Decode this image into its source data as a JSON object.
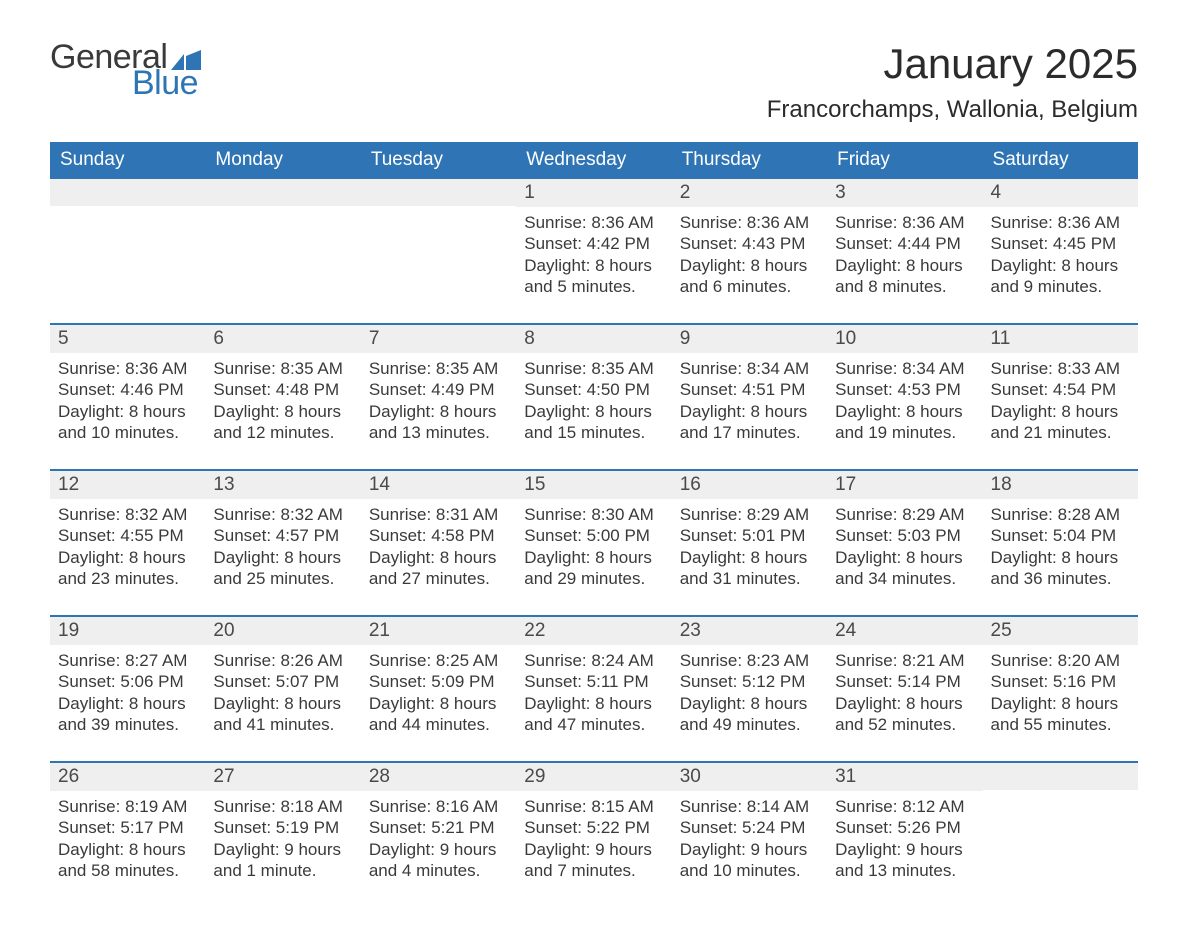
{
  "logo": {
    "general": "General",
    "blue": "Blue"
  },
  "title": "January 2025",
  "location": "Francorchamps, Wallonia, Belgium",
  "colors": {
    "accent": "#2f75b5",
    "daynum_bg": "#efefef",
    "text": "#3a3a3a",
    "background": "#ffffff"
  },
  "typography": {
    "title_fontsize": 42,
    "location_fontsize": 24,
    "dow_fontsize": 19,
    "daynum_fontsize": 19,
    "body_fontsize": 17
  },
  "layout": {
    "columns": 7,
    "rows": 5,
    "first_weekday_index": 3
  },
  "days_of_week": [
    "Sunday",
    "Monday",
    "Tuesday",
    "Wednesday",
    "Thursday",
    "Friday",
    "Saturday"
  ],
  "labels": {
    "sunrise": "Sunrise",
    "sunset": "Sunset",
    "daylight": "Daylight"
  },
  "weeks": [
    [
      null,
      null,
      null,
      {
        "n": "1",
        "sunrise": "8:36 AM",
        "sunset": "4:42 PM",
        "daylight": "8 hours and 5 minutes."
      },
      {
        "n": "2",
        "sunrise": "8:36 AM",
        "sunset": "4:43 PM",
        "daylight": "8 hours and 6 minutes."
      },
      {
        "n": "3",
        "sunrise": "8:36 AM",
        "sunset": "4:44 PM",
        "daylight": "8 hours and 8 minutes."
      },
      {
        "n": "4",
        "sunrise": "8:36 AM",
        "sunset": "4:45 PM",
        "daylight": "8 hours and 9 minutes."
      }
    ],
    [
      {
        "n": "5",
        "sunrise": "8:36 AM",
        "sunset": "4:46 PM",
        "daylight": "8 hours and 10 minutes."
      },
      {
        "n": "6",
        "sunrise": "8:35 AM",
        "sunset": "4:48 PM",
        "daylight": "8 hours and 12 minutes."
      },
      {
        "n": "7",
        "sunrise": "8:35 AM",
        "sunset": "4:49 PM",
        "daylight": "8 hours and 13 minutes."
      },
      {
        "n": "8",
        "sunrise": "8:35 AM",
        "sunset": "4:50 PM",
        "daylight": "8 hours and 15 minutes."
      },
      {
        "n": "9",
        "sunrise": "8:34 AM",
        "sunset": "4:51 PM",
        "daylight": "8 hours and 17 minutes."
      },
      {
        "n": "10",
        "sunrise": "8:34 AM",
        "sunset": "4:53 PM",
        "daylight": "8 hours and 19 minutes."
      },
      {
        "n": "11",
        "sunrise": "8:33 AM",
        "sunset": "4:54 PM",
        "daylight": "8 hours and 21 minutes."
      }
    ],
    [
      {
        "n": "12",
        "sunrise": "8:32 AM",
        "sunset": "4:55 PM",
        "daylight": "8 hours and 23 minutes."
      },
      {
        "n": "13",
        "sunrise": "8:32 AM",
        "sunset": "4:57 PM",
        "daylight": "8 hours and 25 minutes."
      },
      {
        "n": "14",
        "sunrise": "8:31 AM",
        "sunset": "4:58 PM",
        "daylight": "8 hours and 27 minutes."
      },
      {
        "n": "15",
        "sunrise": "8:30 AM",
        "sunset": "5:00 PM",
        "daylight": "8 hours and 29 minutes."
      },
      {
        "n": "16",
        "sunrise": "8:29 AM",
        "sunset": "5:01 PM",
        "daylight": "8 hours and 31 minutes."
      },
      {
        "n": "17",
        "sunrise": "8:29 AM",
        "sunset": "5:03 PM",
        "daylight": "8 hours and 34 minutes."
      },
      {
        "n": "18",
        "sunrise": "8:28 AM",
        "sunset": "5:04 PM",
        "daylight": "8 hours and 36 minutes."
      }
    ],
    [
      {
        "n": "19",
        "sunrise": "8:27 AM",
        "sunset": "5:06 PM",
        "daylight": "8 hours and 39 minutes."
      },
      {
        "n": "20",
        "sunrise": "8:26 AM",
        "sunset": "5:07 PM",
        "daylight": "8 hours and 41 minutes."
      },
      {
        "n": "21",
        "sunrise": "8:25 AM",
        "sunset": "5:09 PM",
        "daylight": "8 hours and 44 minutes."
      },
      {
        "n": "22",
        "sunrise": "8:24 AM",
        "sunset": "5:11 PM",
        "daylight": "8 hours and 47 minutes."
      },
      {
        "n": "23",
        "sunrise": "8:23 AM",
        "sunset": "5:12 PM",
        "daylight": "8 hours and 49 minutes."
      },
      {
        "n": "24",
        "sunrise": "8:21 AM",
        "sunset": "5:14 PM",
        "daylight": "8 hours and 52 minutes."
      },
      {
        "n": "25",
        "sunrise": "8:20 AM",
        "sunset": "5:16 PM",
        "daylight": "8 hours and 55 minutes."
      }
    ],
    [
      {
        "n": "26",
        "sunrise": "8:19 AM",
        "sunset": "5:17 PM",
        "daylight": "8 hours and 58 minutes."
      },
      {
        "n": "27",
        "sunrise": "8:18 AM",
        "sunset": "5:19 PM",
        "daylight": "9 hours and 1 minute."
      },
      {
        "n": "28",
        "sunrise": "8:16 AM",
        "sunset": "5:21 PM",
        "daylight": "9 hours and 4 minutes."
      },
      {
        "n": "29",
        "sunrise": "8:15 AM",
        "sunset": "5:22 PM",
        "daylight": "9 hours and 7 minutes."
      },
      {
        "n": "30",
        "sunrise": "8:14 AM",
        "sunset": "5:24 PM",
        "daylight": "9 hours and 10 minutes."
      },
      {
        "n": "31",
        "sunrise": "8:12 AM",
        "sunset": "5:26 PM",
        "daylight": "9 hours and 13 minutes."
      },
      null
    ]
  ]
}
